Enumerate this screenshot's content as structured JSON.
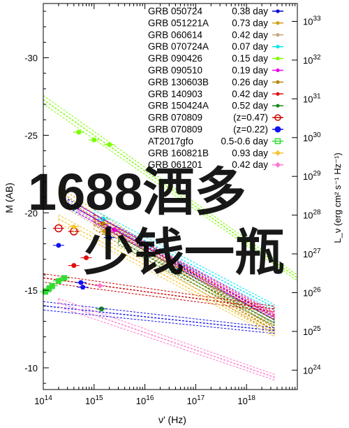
{
  "chart_data": {
    "type": "scatter",
    "title": "",
    "xlabel": "ν′ (Hz)",
    "ylabel_left": "M (AB)",
    "ylabel_right": "L_ν (erg cm² s⁻¹ Hz⁻¹)",
    "x_scale": "log",
    "x_range_hz": [
      100000000000000.0,
      1e+19
    ],
    "x_ticks": [
      {
        "value": 100000000000000.0,
        "base": "10",
        "exp": "14"
      },
      {
        "value": 1000000000000000.0,
        "base": "10",
        "exp": "15"
      },
      {
        "value": 1e+16,
        "base": "10",
        "exp": "16"
      },
      {
        "value": 1e+17,
        "base": "10",
        "exp": "17"
      },
      {
        "value": 1e+18,
        "base": "10",
        "exp": "18"
      }
    ],
    "y_range_mag": [
      -33.5,
      -8.6
    ],
    "y_ticks": [
      {
        "value": -30,
        "label": "-30"
      },
      {
        "value": -25,
        "label": "-25"
      },
      {
        "value": -20,
        "label": "-20"
      },
      {
        "value": -15,
        "label": "-15"
      },
      {
        "value": -10,
        "label": "-10"
      }
    ],
    "y2_ticks": [
      {
        "value": -32.35,
        "base": "10",
        "exp": "33"
      },
      {
        "value": -29.85,
        "base": "10",
        "exp": "32"
      },
      {
        "value": -27.35,
        "base": "10",
        "exp": "31"
      },
      {
        "value": -24.85,
        "base": "10",
        "exp": "30"
      },
      {
        "value": -22.35,
        "base": "10",
        "exp": "29"
      },
      {
        "value": -19.85,
        "base": "10",
        "exp": "28"
      },
      {
        "value": -17.35,
        "base": "10",
        "exp": "27"
      },
      {
        "value": -14.85,
        "base": "10",
        "exp": "26"
      },
      {
        "value": -12.35,
        "base": "10",
        "exp": "25"
      },
      {
        "value": -9.85,
        "base": "10",
        "exp": "24"
      }
    ],
    "legend_position": "top-right",
    "series": [
      {
        "name": "GRB 050724",
        "value": "0.38 day",
        "color": "#0000cc",
        "marker": "circle",
        "line": [
          [
            310000000000000.0,
            -20.6
          ],
          [
            3.5e+18,
            -13.1
          ]
        ],
        "points": [
          [
            2000000000000000.0,
            -18.4
          ]
        ]
      },
      {
        "name": "GRB 051221A",
        "value": "0.73 day",
        "color": "#d4a017",
        "marker": "circle",
        "line": [
          [
            200000000000000.0,
            -21.4
          ],
          [
            3.5e+18,
            -12.6
          ]
        ],
        "points": [
          [
            1600000000000000.0,
            -18.8
          ]
        ]
      },
      {
        "name": "GRB 060614",
        "value": "0.42 day",
        "color": "#c8a878",
        "marker": "circle",
        "line": [
          [
            300000000000000.0,
            -20.5
          ],
          [
            3.5e+18,
            -12.9
          ]
        ],
        "points": [
          [
            1800000000000000.0,
            -18.6
          ]
        ]
      },
      {
        "name": "GRB 070724A",
        "value": "0.07 day",
        "color": "#00e5ee",
        "marker": "circle",
        "line": [
          [
            1000000000000000.0,
            -19.9
          ],
          [
            3.5e+18,
            -13.9
          ]
        ],
        "points": [
          [
            1500000000000000.0,
            -19.6
          ]
        ]
      },
      {
        "name": "GRB 090426",
        "value": "0.15 day",
        "color": "#7cfc00",
        "marker": "circle",
        "line": [
          [
            100000000000000.0,
            -27.3
          ],
          [
            1e+19,
            -15.8
          ]
        ],
        "points": [
          [
            500000000000000.0,
            -25.2
          ],
          [
            1000000000000000.0,
            -24.7
          ],
          [
            2000000000000000.0,
            -24.4
          ]
        ]
      },
      {
        "name": "GRB 090510",
        "value": "0.19 day",
        "color": "#ee00ee",
        "marker": "circle",
        "line": [
          [
            500000000000000.0,
            -20.2
          ],
          [
            3.5e+18,
            -13.4
          ]
        ],
        "points": [
          [
            2500000000000000.0,
            -18.9
          ]
        ]
      },
      {
        "name": "GRB 130603B",
        "value": "0.26 day",
        "color": "#b8860b",
        "marker": "circle",
        "line": [
          [
            1000000000000000.0,
            -19.2
          ],
          [
            3.5e+18,
            -12.4
          ]
        ],
        "points": [
          [
            1500000000000000.0,
            -19.3
          ]
        ]
      },
      {
        "name": "GRB 140903",
        "value": "0.42 day",
        "color": "#dd1111",
        "marker": "circle",
        "line": [
          [
            1000000000000000.0,
            -19.6
          ],
          [
            3.5e+18,
            -13.3
          ]
        ],
        "points": [
          [
            400000000000000.0,
            -16.6
          ],
          [
            700000000000000.0,
            -17.1
          ]
        ]
      },
      {
        "name": "GRB 150424A",
        "value": "0.52 day",
        "color": "#1a8a1a",
        "marker": "circle",
        "line": [
          [
            3000000000000000.0,
            -18.2
          ],
          [
            3.5e+18,
            -12.9
          ]
        ],
        "points": [
          [
            1400000000000000.0,
            -13.8
          ]
        ]
      },
      {
        "name": "GRB 070809",
        "value": "(z=0.47)",
        "color": "#cc0000",
        "marker": "open-circle",
        "line": [
          [
            100000000000000.0,
            -15.8
          ],
          [
            3.5e+18,
            -13.8
          ]
        ],
        "points": [
          [
            200000000000000.0,
            -19.0
          ],
          [
            400000000000000.0,
            -18.8
          ]
        ]
      },
      {
        "name": "GRB 070809",
        "value": "(z=0.22)",
        "color": "#1111ee",
        "marker": "filled-circle",
        "line": [
          [
            100000000000000.0,
            -14.0
          ],
          [
            3.5e+18,
            -12.4
          ]
        ],
        "points": [
          [
            200000000000000.0,
            -17.9
          ],
          [
            550000000000000.0,
            -15.5
          ],
          [
            600000000000000.0,
            -15.2
          ]
        ]
      },
      {
        "name": "AT2017gfo",
        "value": "0.5-0.6 day",
        "color": "#33dd33",
        "marker": "open-square",
        "line": [
          [
            1000000000000000.0,
            -14.5
          ],
          [
            1000000000000000.0,
            -14.5
          ]
        ],
        "points": [
          [
            110000000000000.0,
            -14.9
          ],
          [
            130000000000000.0,
            -15.1
          ],
          [
            150000000000000.0,
            -15.3
          ],
          [
            200000000000000.0,
            -15.6
          ],
          [
            260000000000000.0,
            -15.8
          ]
        ]
      },
      {
        "name": "GRB 160821B",
        "value": "0.93 day",
        "color": "#f4c430",
        "marker": "diamond",
        "line": [
          [
            200000000000000.0,
            -19.6
          ],
          [
            3.5e+18,
            -12.2
          ]
        ],
        "points": [
          [
            400000000000000.0,
            -19.1
          ]
        ]
      },
      {
        "name": "GRB 061201",
        "value": "0.42 day",
        "color": "#ff77cc",
        "marker": "diamond",
        "line": [
          [
            200000000000000.0,
            -14.2
          ],
          [
            3.5e+18,
            -9.4
          ]
        ],
        "points": [
          [
            1300000000000000.0,
            -15.3
          ]
        ]
      }
    ]
  },
  "watermark": {
    "line1": "1688酒多",
    "line2": "少钱一瓶"
  }
}
